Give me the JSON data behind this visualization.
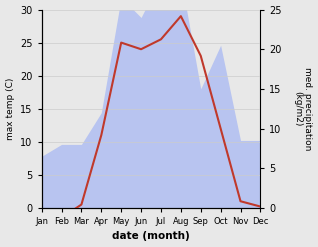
{
  "months": [
    "Jan",
    "Feb",
    "Mar",
    "Apr",
    "May",
    "Jun",
    "Jul",
    "Aug",
    "Sep",
    "Oct",
    "Nov",
    "Dec"
  ],
  "temperature": [
    -0.5,
    -1.5,
    0.5,
    11.0,
    25.0,
    24.0,
    25.5,
    29.0,
    23.0,
    12.0,
    1.0,
    0.2
  ],
  "precipitation": [
    6.5,
    8.0,
    8.0,
    12.0,
    26.5,
    24.0,
    29.0,
    29.0,
    15.0,
    20.5,
    8.5,
    8.5
  ],
  "temp_color": "#c0392b",
  "precip_color": "#b8c4f0",
  "temp_ylim": [
    0,
    30
  ],
  "precip_ylim": [
    0,
    25
  ],
  "temp_yticks": [
    0,
    5,
    10,
    15,
    20,
    25,
    30
  ],
  "precip_yticks": [
    0,
    5,
    10,
    15,
    20,
    25
  ],
  "xlabel": "date (month)",
  "ylabel_left": "max temp (C)",
  "ylabel_right": "med. precipitation\n(kg/m2)",
  "background_color": "#e8e8e8",
  "plot_background": "#ffffff"
}
